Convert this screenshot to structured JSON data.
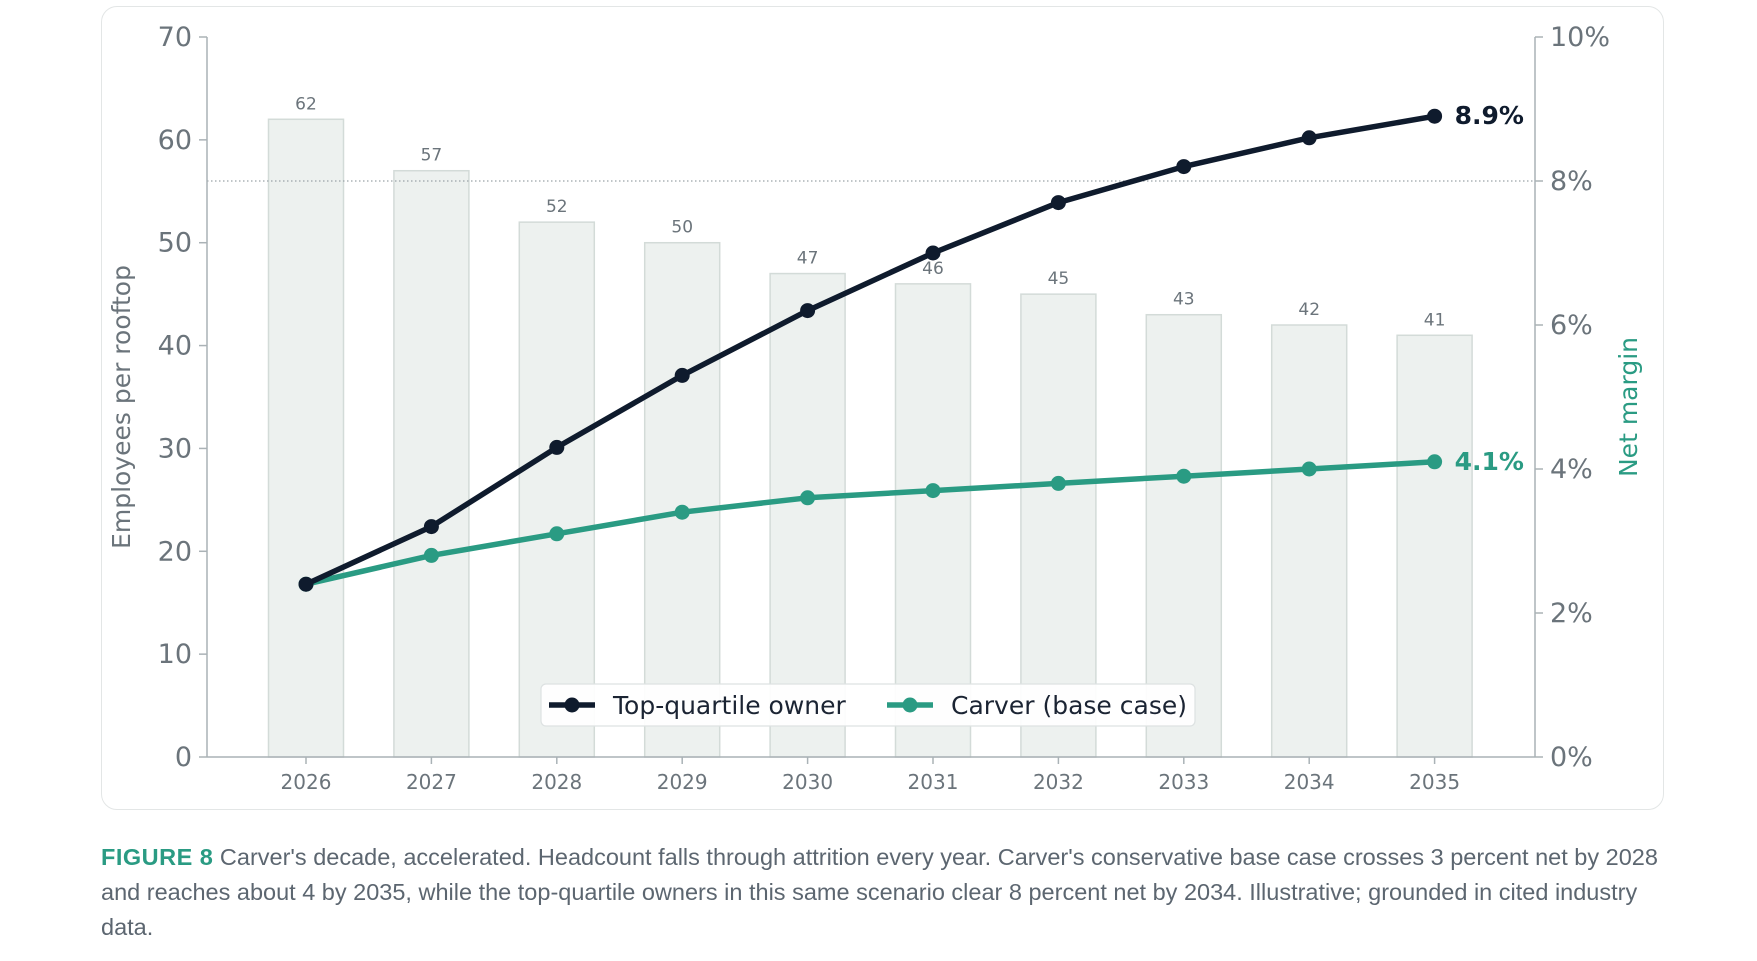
{
  "caption": {
    "label": "FIGURE 8",
    "text": "Carver's decade, accelerated. Headcount falls through attrition every year. Carver's conservative base case crosses 3 percent net by 2028 and reaches about 4 by 2035, while the top-quartile owners in this same scenario clear 8 percent net by 2034. Illustrative; grounded in cited industry data."
  },
  "colors": {
    "bar_fill": "#edf1ef",
    "bar_stroke": "#d3dbd8",
    "top_quartile": "#0f1b2d",
    "carver": "#2a9b83",
    "axis": "#aab2b6",
    "reference_line": "#9aa3a8"
  },
  "chart_data": {
    "type": "bar",
    "categories": [
      "2026",
      "2027",
      "2028",
      "2029",
      "2030",
      "2031",
      "2032",
      "2033",
      "2034",
      "2035"
    ],
    "bars": {
      "values": [
        62,
        57,
        52,
        50,
        47,
        46,
        45,
        43,
        42,
        41
      ],
      "labels": [
        "62",
        "57",
        "52",
        "50",
        "47",
        "46",
        "45",
        "43",
        "42",
        "41"
      ]
    },
    "ylabel": "Employees per rooftop",
    "ylim": [
      0,
      70
    ],
    "yticks": [
      {
        "value": 0,
        "label": "0"
      },
      {
        "value": 10,
        "label": "10"
      },
      {
        "value": 20,
        "label": "20"
      },
      {
        "value": 30,
        "label": "30"
      },
      {
        "value": 40,
        "label": "40"
      },
      {
        "value": 50,
        "label": "50"
      },
      {
        "value": 60,
        "label": "60"
      },
      {
        "value": 70,
        "label": "70"
      }
    ],
    "y2label": "Net margin",
    "y2lim": [
      0,
      10
    ],
    "y2ticks": [
      {
        "value": 0,
        "label": "0%"
      },
      {
        "value": 2,
        "label": "2%"
      },
      {
        "value": 4,
        "label": "4%"
      },
      {
        "value": 6,
        "label": "6%"
      },
      {
        "value": 8,
        "label": "8%"
      },
      {
        "value": 10,
        "label": "10%"
      }
    ],
    "reference_line": {
      "axis": "y2",
      "value": 8,
      "style": "dotted"
    },
    "series": [
      {
        "name": "Top-quartile owner",
        "axis": "y2",
        "type": "line",
        "values": [
          2.4,
          3.2,
          4.3,
          5.3,
          6.2,
          7.0,
          7.7,
          8.2,
          8.6,
          8.9
        ],
        "end_label": "8.9%"
      },
      {
        "name": "Carver (base case)",
        "axis": "y2",
        "type": "line",
        "values": [
          2.4,
          2.8,
          3.1,
          3.4,
          3.6,
          3.7,
          3.8,
          3.9,
          4.0,
          4.1
        ],
        "end_label": "4.1%"
      }
    ],
    "grid": false,
    "legend_position": "bottom-center"
  }
}
